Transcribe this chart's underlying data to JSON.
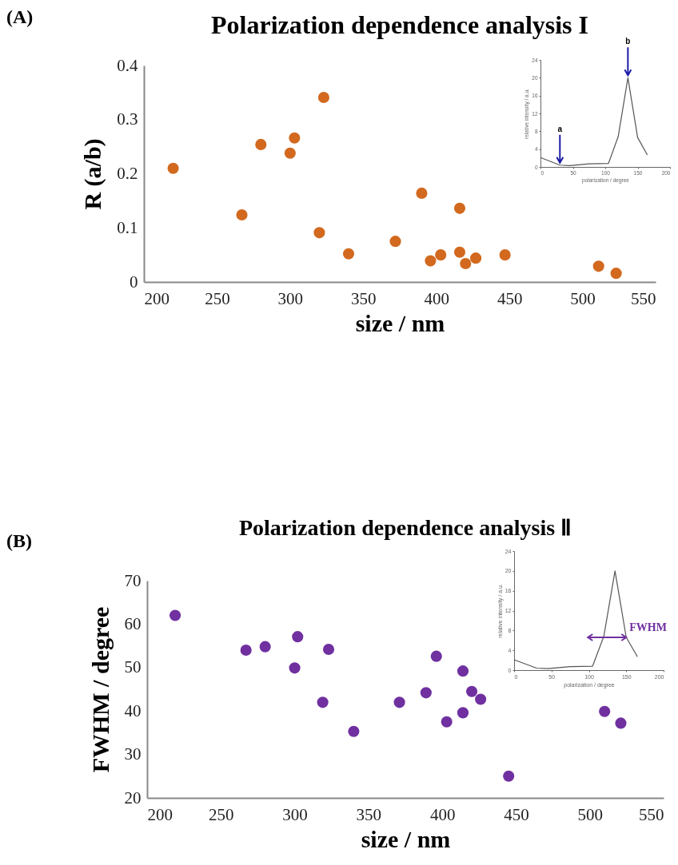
{
  "chart_data": [
    {
      "type": "scatter",
      "title": "Polarization dependence analysis I",
      "xlabel": "size / nm",
      "ylabel": "R (a/b)",
      "annotations": [
        "(A)"
      ],
      "marker": "circle",
      "x": [
        220,
        267,
        280,
        300,
        303,
        323,
        320,
        340,
        372,
        390,
        396,
        403,
        416,
        416,
        420,
        427,
        447,
        511,
        523
      ],
      "series": [
        {
          "color": "#d2691e",
          "values": [
            0.21,
            0.124,
            0.254,
            0.238,
            0.266,
            0.341,
            0.091,
            0.052,
            0.075,
            0.164,
            0.039,
            0.05,
            0.136,
            0.055,
            0.034,
            0.044,
            0.05,
            0.029,
            0.016
          ]
        }
      ],
      "xlim": [
        200,
        550
      ],
      "xticks": [
        200,
        250,
        300,
        350,
        400,
        450,
        500,
        550
      ],
      "ylim": [
        0,
        0.4
      ],
      "yticks": [
        0,
        0.1,
        0.2,
        0.3,
        0.4
      ]
    },
    {
      "type": "line",
      "xlabel": "polarization / degree",
      "ylabel": "relative intensity / a.u.",
      "marker": "none",
      "x": [
        0,
        30,
        45,
        75,
        105,
        120,
        135,
        150,
        165
      ],
      "series": [
        {
          "color": "#555555",
          "values": [
            2.1,
            0.4,
            0.3,
            0.7,
            0.8,
            6.8,
            20,
            6.6,
            2.7
          ]
        }
      ],
      "annotations": [
        {
          "text": "a",
          "x": 30,
          "y": 0.4
        },
        {
          "text": "b",
          "x": 135,
          "y": 20
        }
      ],
      "xlim": [
        0,
        200
      ],
      "xticks": [
        0,
        50,
        100,
        150,
        200
      ],
      "ylim": [
        0,
        24
      ],
      "yticks": [
        0,
        4,
        8,
        12,
        16,
        20,
        24
      ]
    },
    {
      "type": "scatter",
      "title": "Polarization dependence analysis Ⅱ",
      "xlabel": "size / nm",
      "ylabel": "FWHM / degree",
      "annotations": [
        "(B)"
      ],
      "marker": "circle",
      "x": [
        219,
        267,
        280,
        300,
        302,
        323,
        319,
        340,
        371,
        389,
        396,
        403,
        414,
        414,
        420,
        426,
        445,
        510,
        521
      ],
      "series": [
        {
          "color": "#7030a0",
          "values": [
            62,
            54,
            54.8,
            49.9,
            57.1,
            54.2,
            42,
            35.3,
            42,
            44.2,
            52.6,
            37.5,
            49.2,
            39.6,
            44.5,
            42.7,
            25,
            39.9,
            37.2
          ]
        }
      ],
      "xlim": [
        200,
        550
      ],
      "xticks": [
        200,
        250,
        300,
        350,
        400,
        450,
        500,
        550
      ],
      "ylim": [
        20,
        70
      ],
      "yticks": [
        20,
        30,
        40,
        50,
        60,
        70
      ]
    },
    {
      "type": "line",
      "xlabel": "polarization / degree",
      "ylabel": "relative intensity / a.u.",
      "marker": "none",
      "x": [
        0,
        30,
        45,
        75,
        105,
        120,
        135,
        150,
        165
      ],
      "series": [
        {
          "color": "#555555",
          "values": [
            2.1,
            0.4,
            0.3,
            0.7,
            0.8,
            6.8,
            20,
            6.6,
            2.7
          ]
        }
      ],
      "annotations": [
        {
          "text": "FWHM",
          "x": 150,
          "y": 6.6
        }
      ],
      "xlim": [
        0,
        200
      ],
      "xticks": [
        0,
        50,
        100,
        150,
        200
      ],
      "ylim": [
        0,
        24
      ],
      "yticks": [
        0,
        4,
        8,
        12,
        16,
        20,
        24
      ]
    }
  ]
}
